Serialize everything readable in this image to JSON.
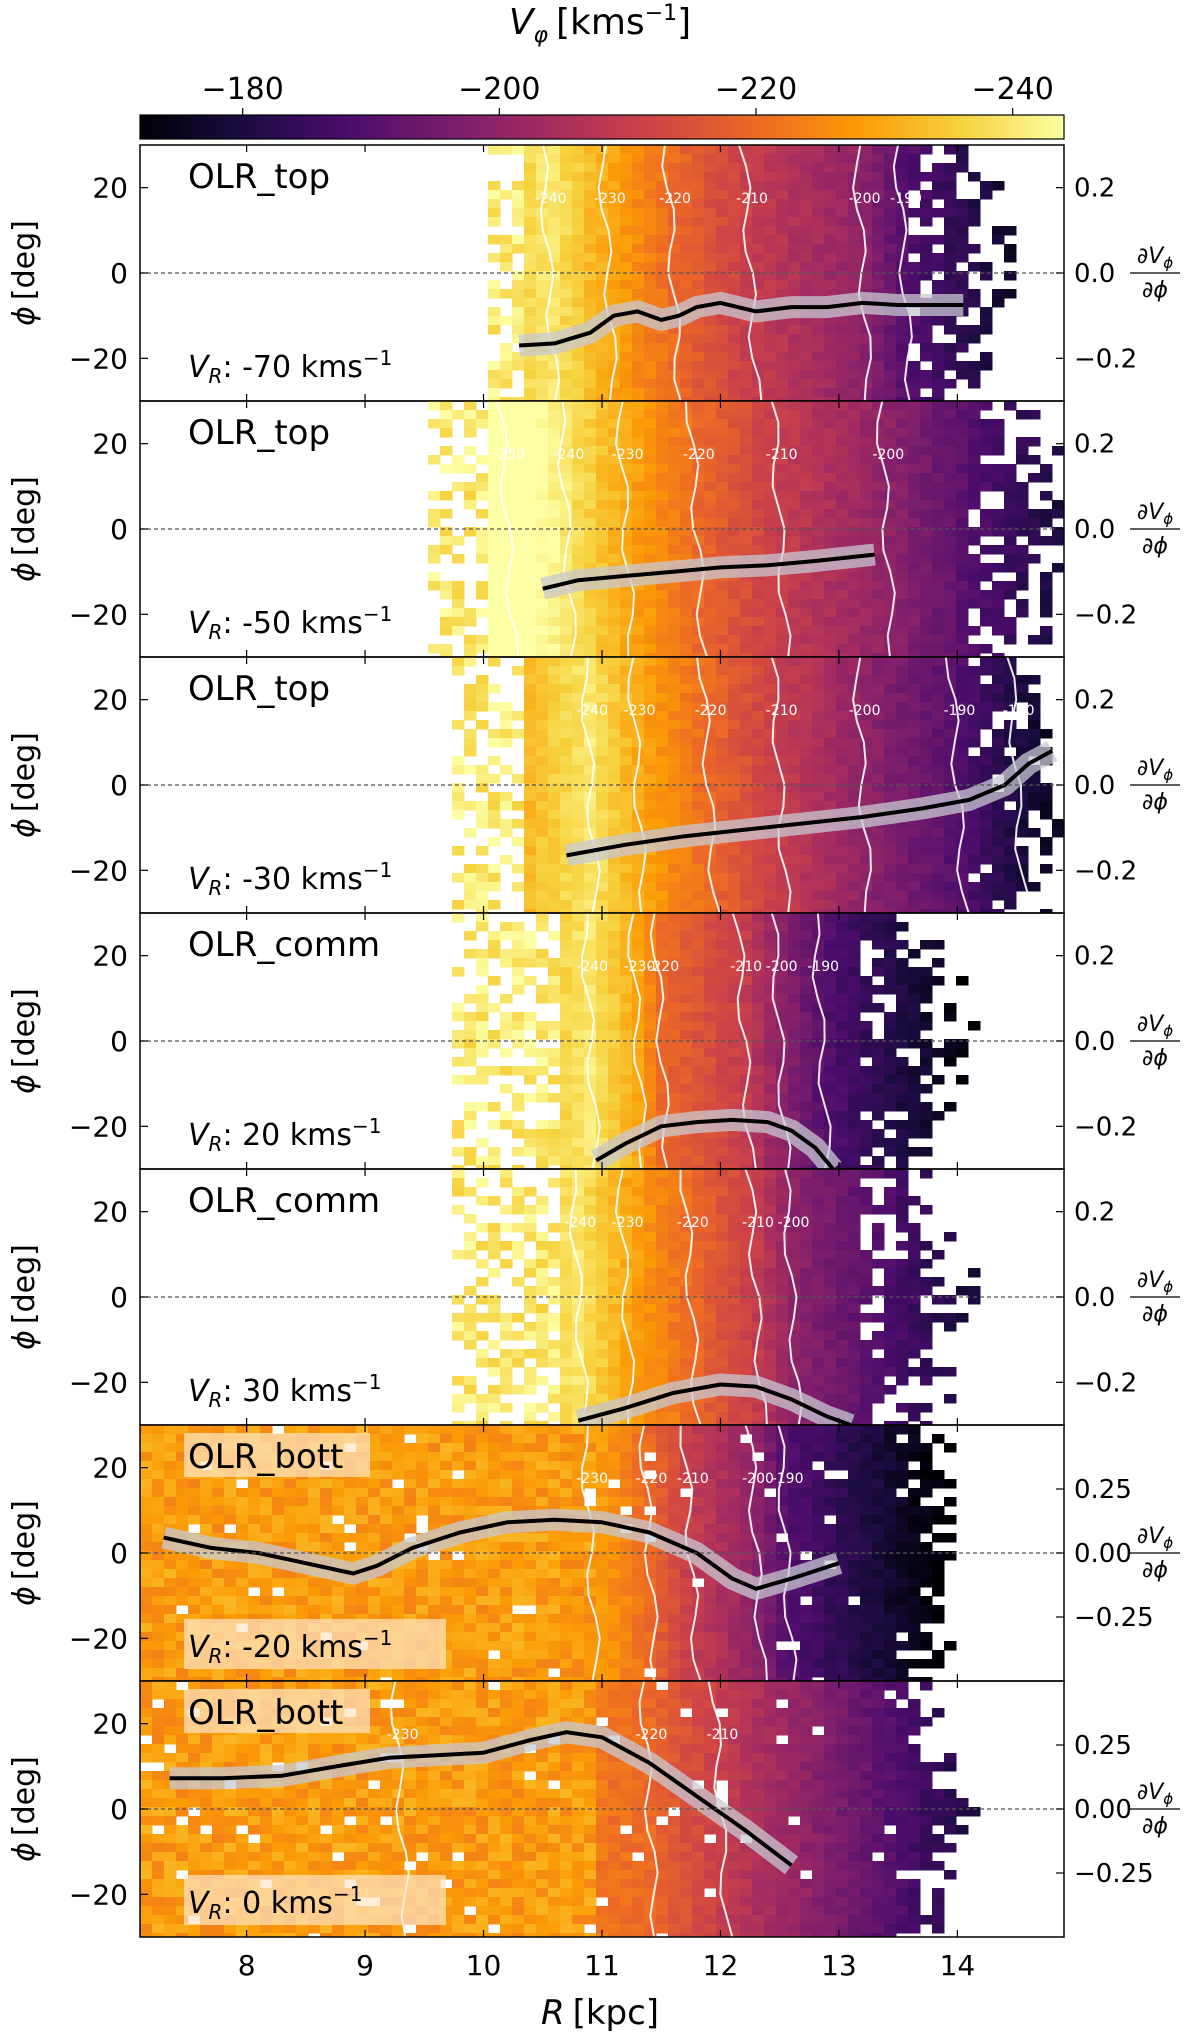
{
  "figure": {
    "colorbar": {
      "label": "V_φ [kms⁻¹]",
      "label_main": "V",
      "label_sub": "φ",
      "label_unit": "[kms",
      "label_exp": "−1",
      "label_close": "]",
      "vmin": -172,
      "vmax": -244,
      "ticks": [
        -180,
        -200,
        -220,
        -240
      ],
      "tick_labels": [
        "−180",
        "−200",
        "−220",
        "−240"
      ],
      "colormap": "inferno",
      "colormap_stops": [
        "#000004",
        "#1b0c41",
        "#4a0c6b",
        "#781c6d",
        "#a52c60",
        "#cf4446",
        "#ed6925",
        "#fb9b06",
        "#f7d13d",
        "#fcffa4"
      ]
    },
    "xaxis": {
      "label_main": "R",
      "label_unit": "[kpc]",
      "range": [
        7.1,
        14.9
      ],
      "ticks": [
        8,
        9,
        10,
        11,
        12,
        13,
        14
      ],
      "tick_labels": [
        "8",
        "9",
        "10",
        "11",
        "12",
        "13",
        "14"
      ]
    },
    "yaxis_left": {
      "label_main": "ϕ",
      "label_unit": "[deg]",
      "range": [
        -30,
        30
      ],
      "ticks": [
        20,
        0,
        -20
      ],
      "tick_labels": [
        "20",
        "0",
        "−20"
      ]
    },
    "yaxis_right_label": {
      "numerator": "∂V",
      "numerator_sub": "ϕ",
      "denominator": "∂ϕ"
    }
  },
  "chart_data": [
    {
      "type": "heatmap",
      "panel": "OLR_top",
      "title": "OLR_top",
      "vr_label_pre": "V",
      "vr_label_sub": "R",
      "vr_label_value": ": -70 kms",
      "vr_label_exp": "−1",
      "xlabel": "R [kpc]",
      "ylabel": "ϕ [deg]",
      "xlim": [
        7.1,
        14.9
      ],
      "ylim": [
        -30,
        30
      ],
      "right_ylim": [
        -0.3,
        0.3
      ],
      "right_ticks": [
        0.2,
        0.0,
        -0.2
      ],
      "right_tick_labels": [
        "0.2",
        "0.0",
        "−0.2"
      ],
      "data_extent": {
        "r_start": 10.0,
        "r_end": 14.4,
        "r_start_edge": 10.3
      },
      "contours": [
        {
          "label": "-240",
          "r": 10.55
        },
        {
          "label": "-230",
          "r": 11.05
        },
        {
          "label": "-220",
          "r": 11.6
        },
        {
          "label": "-210",
          "r": 12.25
        },
        {
          "label": "-200",
          "r": 13.2
        },
        {
          "label": "-190",
          "r": 13.55
        }
      ],
      "gradient_curve": {
        "r": [
          10.3,
          10.6,
          10.9,
          11.1,
          11.3,
          11.5,
          11.65,
          11.8,
          12.0,
          12.3,
          12.6,
          12.9,
          13.2,
          13.5,
          13.8,
          14.05
        ],
        "dvdphi": [
          -0.17,
          -0.165,
          -0.14,
          -0.1,
          -0.09,
          -0.11,
          -0.1,
          -0.08,
          -0.07,
          -0.09,
          -0.08,
          -0.08,
          -0.07,
          -0.075,
          -0.075,
          -0.075
        ]
      }
    },
    {
      "type": "heatmap",
      "panel": "OLR_top",
      "title": "OLR_top",
      "vr_label_pre": "V",
      "vr_label_sub": "R",
      "vr_label_value": ": -50 kms",
      "vr_label_exp": "−1",
      "xlabel": "R [kpc]",
      "ylabel": "ϕ [deg]",
      "xlim": [
        7.1,
        14.9
      ],
      "ylim": [
        -30,
        30
      ],
      "right_ylim": [
        -0.3,
        0.3
      ],
      "right_ticks": [
        0.2,
        0.0,
        -0.2
      ],
      "right_tick_labels": [
        "0.2",
        "0.0",
        "−0.2"
      ],
      "data_extent": {
        "r_start": 9.5,
        "r_end": 14.9,
        "r_start_edge": 10.0
      },
      "contours": [
        {
          "label": "-250",
          "r": 10.2
        },
        {
          "label": "-240",
          "r": 10.7
        },
        {
          "label": "-230",
          "r": 11.2
        },
        {
          "label": "-220",
          "r": 11.8
        },
        {
          "label": "-210",
          "r": 12.5
        },
        {
          "label": "-200",
          "r": 13.4
        }
      ],
      "gradient_curve": {
        "r": [
          10.5,
          10.8,
          11.2,
          11.6,
          12.0,
          12.4,
          12.8,
          13.3
        ],
        "dvdphi": [
          -0.14,
          -0.12,
          -0.11,
          -0.1,
          -0.09,
          -0.085,
          -0.075,
          -0.06
        ]
      }
    },
    {
      "type": "heatmap",
      "panel": "OLR_top",
      "title": "OLR_top",
      "vr_label_pre": "V",
      "vr_label_sub": "R",
      "vr_label_value": ": -30 kms",
      "vr_label_exp": "−1",
      "xlabel": "R [kpc]",
      "ylabel": "ϕ [deg]",
      "xlim": [
        7.1,
        14.9
      ],
      "ylim": [
        -30,
        30
      ],
      "right_ylim": [
        -0.3,
        0.3
      ],
      "right_ticks": [
        0.2,
        0.0,
        -0.2
      ],
      "right_tick_labels": [
        "0.2",
        "0.0",
        "−0.2"
      ],
      "data_extent": {
        "r_start": 9.7,
        "r_end": 14.9,
        "r_start_edge": 10.35
      },
      "contours": [
        {
          "label": "-240",
          "r": 10.9
        },
        {
          "label": "-230",
          "r": 11.3
        },
        {
          "label": "-220",
          "r": 11.9
        },
        {
          "label": "-210",
          "r": 12.5
        },
        {
          "label": "-200",
          "r": 13.2
        },
        {
          "label": "-190",
          "r": 14.0
        },
        {
          "label": "-180",
          "r": 14.5
        }
      ],
      "gradient_curve": {
        "r": [
          10.7,
          11.2,
          11.7,
          12.2,
          12.7,
          13.2,
          13.7,
          14.1,
          14.4,
          14.6,
          14.8
        ],
        "dvdphi": [
          -0.165,
          -0.14,
          -0.12,
          -0.105,
          -0.09,
          -0.075,
          -0.055,
          -0.035,
          0.0,
          0.05,
          0.08
        ]
      }
    },
    {
      "type": "heatmap",
      "panel": "OLR_comm",
      "title": "OLR_comm",
      "vr_label_pre": "V",
      "vr_label_sub": "R",
      "vr_label_value": ": 20 kms",
      "vr_label_exp": "−1",
      "xlabel": "R [kpc]",
      "ylabel": "ϕ [deg]",
      "xlim": [
        7.1,
        14.9
      ],
      "ylim": [
        -30,
        30
      ],
      "right_ylim": [
        -0.3,
        0.3
      ],
      "right_ticks": [
        0.2,
        0.0,
        -0.2
      ],
      "right_tick_labels": [
        "0.2",
        "0.0",
        "−0.2"
      ],
      "data_extent": {
        "r_start": 9.7,
        "r_end": 14.0,
        "r_start_edge": 10.6
      },
      "contours": [
        {
          "label": "-240",
          "r": 10.9
        },
        {
          "label": "-230",
          "r": 11.3
        },
        {
          "label": "-220",
          "r": 11.5
        },
        {
          "label": "-210",
          "r": 12.2
        },
        {
          "label": "-200",
          "r": 12.5
        },
        {
          "label": "-190",
          "r": 12.85
        }
      ],
      "gradient_curve": {
        "r": [
          10.95,
          11.2,
          11.5,
          11.8,
          12.1,
          12.4,
          12.6,
          12.8,
          12.95
        ],
        "dvdphi": [
          -0.28,
          -0.24,
          -0.2,
          -0.19,
          -0.185,
          -0.19,
          -0.21,
          -0.25,
          -0.3
        ]
      }
    },
    {
      "type": "heatmap",
      "panel": "OLR_comm",
      "title": "OLR_comm",
      "vr_label_pre": "V",
      "vr_label_sub": "R",
      "vr_label_value": ": 30 kms",
      "vr_label_exp": "−1",
      "xlabel": "R [kpc]",
      "ylabel": "ϕ [deg]",
      "xlim": [
        7.1,
        14.9
      ],
      "ylim": [
        -30,
        30
      ],
      "right_ylim": [
        -0.3,
        0.3
      ],
      "right_ticks": [
        0.2,
        0.0,
        -0.2
      ],
      "right_tick_labels": [
        "0.2",
        "0.0",
        "−0.2"
      ],
      "data_extent": {
        "r_start": 9.7,
        "r_end": 14.0,
        "r_start_edge": 10.6
      },
      "contours": [
        {
          "label": "-240",
          "r": 10.8
        },
        {
          "label": "-230",
          "r": 11.2
        },
        {
          "label": "-220",
          "r": 11.75
        },
        {
          "label": "-210",
          "r": 12.3
        },
        {
          "label": "-200",
          "r": 12.6
        }
      ],
      "gradient_curve": {
        "r": [
          10.8,
          11.2,
          11.6,
          12.0,
          12.3,
          12.6,
          12.9,
          13.1
        ],
        "dvdphi": [
          -0.29,
          -0.26,
          -0.225,
          -0.205,
          -0.21,
          -0.24,
          -0.28,
          -0.3
        ]
      }
    },
    {
      "type": "heatmap",
      "panel": "OLR_bott",
      "title": "OLR_bott",
      "vr_label_pre": "V",
      "vr_label_sub": "R",
      "vr_label_value": ": -20 kms",
      "vr_label_exp": "−1",
      "xlabel": "R [kpc]",
      "ylabel": "ϕ [deg]",
      "xlim": [
        7.1,
        14.9
      ],
      "ylim": [
        -30,
        30
      ],
      "right_ylim": [
        -0.5,
        0.5
      ],
      "right_ticks": [
        0.25,
        0.0,
        -0.25
      ],
      "right_tick_labels": [
        "0.25",
        "0.00",
        "−0.25"
      ],
      "data_extent": {
        "r_start": 7.1,
        "r_end": 14.0,
        "r_start_edge": 7.1
      },
      "contours": [
        {
          "label": "-230",
          "r": 10.9
        },
        {
          "label": "-220",
          "r": 11.4
        },
        {
          "label": "-210",
          "r": 11.75
        },
        {
          "label": "-200",
          "r": 12.3
        },
        {
          "label": "-190",
          "r": 12.55
        }
      ],
      "gradient_curve": {
        "r": [
          7.3,
          7.7,
          8.1,
          8.5,
          8.9,
          9.1,
          9.4,
          9.8,
          10.2,
          10.6,
          11.0,
          11.4,
          11.8,
          12.1,
          12.3,
          12.6,
          13.0
        ],
        "dvdphi": [
          0.06,
          0.02,
          0.0,
          -0.04,
          -0.08,
          -0.05,
          0.02,
          0.08,
          0.12,
          0.13,
          0.12,
          0.08,
          0.0,
          -0.1,
          -0.14,
          -0.1,
          -0.04
        ]
      }
    },
    {
      "type": "heatmap",
      "panel": "OLR_bott",
      "title": "OLR_bott",
      "vr_label_pre": "V",
      "vr_label_sub": "R",
      "vr_label_value": ": 0 kms",
      "vr_label_exp": "−1",
      "xlabel": "R [kpc]",
      "ylabel": "ϕ [deg]",
      "xlim": [
        7.1,
        14.9
      ],
      "ylim": [
        -30,
        30
      ],
      "right_ylim": [
        -0.5,
        0.5
      ],
      "right_ticks": [
        0.25,
        0.0,
        -0.25
      ],
      "right_tick_labels": [
        "0.25",
        "0.00",
        "−0.25"
      ],
      "data_extent": {
        "r_start": 7.1,
        "r_end": 14.0,
        "r_start_edge": 7.1
      },
      "contours": [
        {
          "label": "-230",
          "r": 9.3
        },
        {
          "label": "-220",
          "r": 11.4
        },
        {
          "label": "-210",
          "r": 12.0
        }
      ],
      "gradient_curve": {
        "r": [
          7.35,
          7.8,
          8.3,
          8.8,
          9.2,
          9.6,
          10.0,
          10.4,
          10.7,
          11.0,
          11.4,
          11.8,
          12.2,
          12.6
        ],
        "dvdphi": [
          0.12,
          0.12,
          0.13,
          0.17,
          0.2,
          0.21,
          0.22,
          0.27,
          0.3,
          0.28,
          0.18,
          0.05,
          -0.08,
          -0.22
        ]
      }
    }
  ]
}
